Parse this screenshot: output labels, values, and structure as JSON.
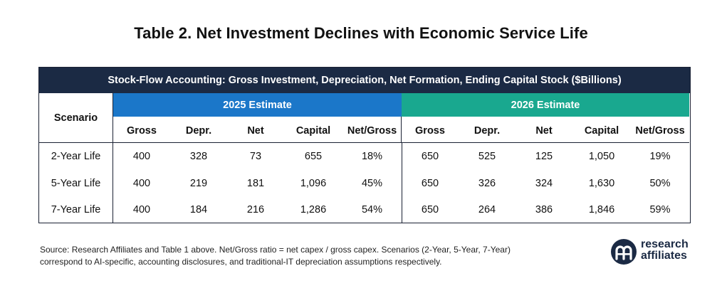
{
  "title": "Table 2. Net Investment Declines with Economic Service Life",
  "banner": "Stock-Flow Accounting: Gross Investment, Depreciation, Net Formation, Ending Capital Stock ($Billions)",
  "scenario_header": "Scenario",
  "group_2025": "2025 Estimate",
  "group_2026": "2026 Estimate",
  "columns": [
    "Gross",
    "Depr.",
    "Net",
    "Capital",
    "Net/Gross"
  ],
  "rows": [
    {
      "label": "2-Year Life",
      "y2025": [
        "400",
        "328",
        "73",
        "655",
        "18%"
      ],
      "y2026": [
        "650",
        "525",
        "125",
        "1,050",
        "19%"
      ]
    },
    {
      "label": "5-Year Life",
      "y2025": [
        "400",
        "219",
        "181",
        "1,096",
        "45%"
      ],
      "y2026": [
        "650",
        "326",
        "324",
        "1,630",
        "50%"
      ]
    },
    {
      "label": "7-Year Life",
      "y2025": [
        "400",
        "184",
        "216",
        "1,286",
        "54%"
      ],
      "y2026": [
        "650",
        "264",
        "386",
        "1,846",
        "59%"
      ]
    }
  ],
  "source_line1": "Source: Research Affiliates and Table 1 above. Net/Gross ratio = net capex / gross capex. Scenarios (2-Year, 5-Year, 7-Year)",
  "source_line2": "correspond to AI-specific, accounting disclosures, and traditional-IT depreciation assumptions respectively.",
  "logo": {
    "line1": "research",
    "line2": "affiliates",
    "mark": "®"
  },
  "colors": {
    "banner": "#1b2a44",
    "group_2025": "#1b77c9",
    "group_2026": "#19a88f"
  }
}
